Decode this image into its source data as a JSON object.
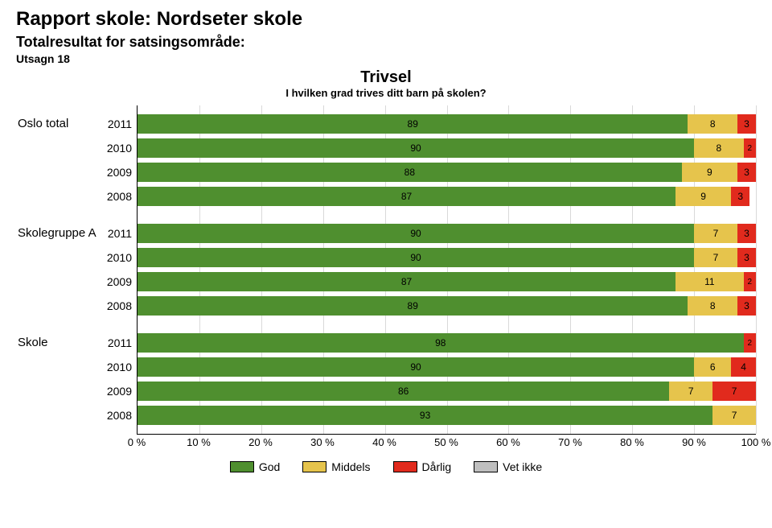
{
  "header": {
    "title": "Rapport skole:  Nordseter skole",
    "subtitle": "Totalresultat for satsingsområde:",
    "utsagn": "Utsagn 18"
  },
  "chart": {
    "title": "Trivsel",
    "subtitle": "I hvilken grad trives ditt barn på skolen?",
    "type": "stacked_bar_horizontal",
    "series": [
      {
        "key": "god",
        "label": "God",
        "color": "#4f8f2f"
      },
      {
        "key": "middels",
        "label": "Middels",
        "color": "#e6c44c"
      },
      {
        "key": "darlig",
        "label": "Dårlig",
        "color": "#e12a1d"
      },
      {
        "key": "vetikke",
        "label": "Vet ikke",
        "color": "#bfbfbf"
      }
    ],
    "xaxis": {
      "min": 0,
      "max": 100,
      "step": 10,
      "suffix": " %"
    },
    "groups": [
      {
        "label": "Oslo total",
        "rows": [
          {
            "year": "2011",
            "values": {
              "god": 89,
              "middels": 8,
              "darlig": 3,
              "vetikke": 0
            }
          },
          {
            "year": "2010",
            "values": {
              "god": 90,
              "middels": 8,
              "darlig": 2,
              "vetikke": 0
            }
          },
          {
            "year": "2009",
            "values": {
              "god": 88,
              "middels": 9,
              "darlig": 3,
              "vetikke": 0
            }
          },
          {
            "year": "2008",
            "values": {
              "god": 87,
              "middels": 9,
              "darlig": 3,
              "vetikke": 0
            }
          }
        ]
      },
      {
        "label": "Skolegruppe A",
        "rows": [
          {
            "year": "2011",
            "values": {
              "god": 90,
              "middels": 7,
              "darlig": 3,
              "vetikke": 0
            }
          },
          {
            "year": "2010",
            "values": {
              "god": 90,
              "middels": 7,
              "darlig": 3,
              "vetikke": 0
            }
          },
          {
            "year": "2009",
            "values": {
              "god": 87,
              "middels": 11,
              "darlig": 2,
              "vetikke": 0
            }
          },
          {
            "year": "2008",
            "values": {
              "god": 89,
              "middels": 8,
              "darlig": 3,
              "vetikke": 0
            }
          }
        ]
      },
      {
        "label": "Skole",
        "rows": [
          {
            "year": "2011",
            "values": {
              "god": 98,
              "middels": 0,
              "darlig": 2,
              "vetikke": 0
            }
          },
          {
            "year": "2010",
            "values": {
              "god": 90,
              "middels": 6,
              "darlig": 4,
              "vetikke": 0
            }
          },
          {
            "year": "2009",
            "values": {
              "god": 86,
              "middels": 7,
              "darlig": 7,
              "vetikke": 0
            }
          },
          {
            "year": "2008",
            "values": {
              "god": 93,
              "middels": 7,
              "darlig": 0,
              "vetikke": 0
            }
          }
        ]
      }
    ]
  }
}
